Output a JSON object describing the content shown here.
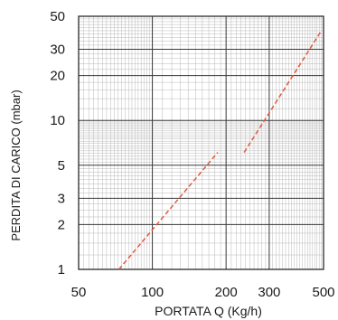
{
  "chart_data": {
    "type": "line",
    "title": "",
    "xlabel": "PORTATA Q (Kg/h)",
    "ylabel": "PERDITA DI CARICO (mbar)",
    "xscale": "log",
    "yscale": "log",
    "xlim": [
      50,
      500
    ],
    "ylim": [
      1,
      50
    ],
    "grid": true,
    "x_ticks": [
      50,
      100,
      200,
      300,
      500
    ],
    "y_ticks": [
      1,
      2,
      3,
      5,
      10,
      20,
      30,
      50
    ],
    "series": [
      {
        "color": "#e05a3a",
        "style": "dashed",
        "x": [
          73,
          185
        ],
        "y": [
          1,
          6.1
        ]
      },
      {
        "color": "#e05a3a",
        "style": "dashed",
        "x": [
          237,
          490
        ],
        "y": [
          6.1,
          40
        ]
      }
    ]
  }
}
